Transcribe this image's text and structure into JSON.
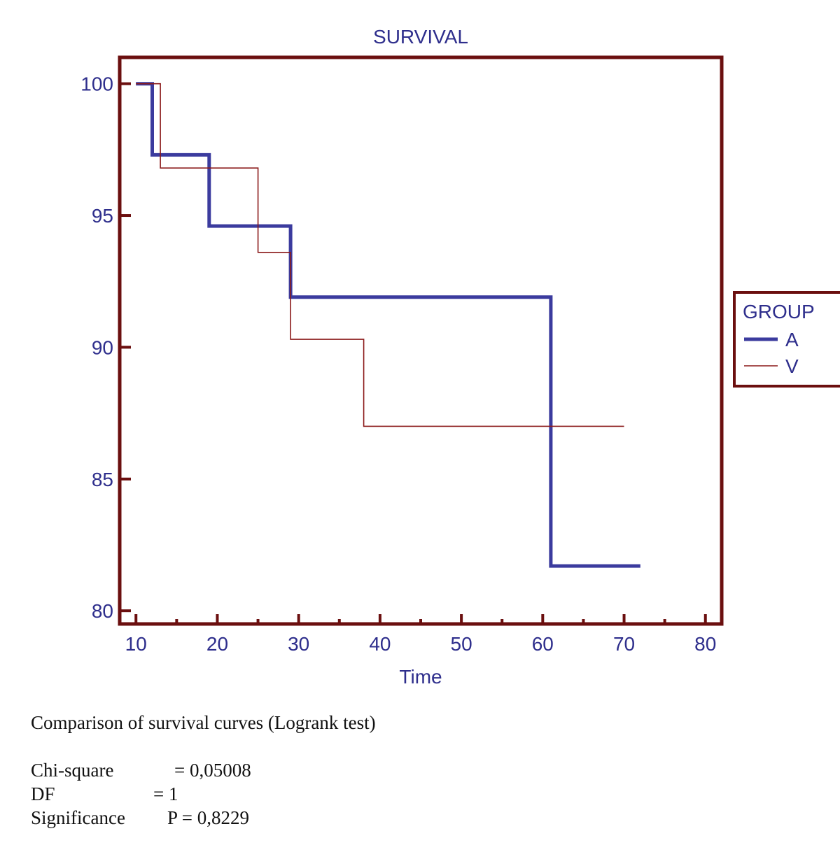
{
  "chart_data": {
    "type": "line",
    "step": true,
    "title": "SURVIVAL",
    "xlabel": "Time",
    "ylabel": "",
    "xlim": [
      8,
      82
    ],
    "ylim": [
      79.5,
      101
    ],
    "x_ticks": [
      10,
      20,
      30,
      40,
      50,
      60,
      70,
      80
    ],
    "y_ticks": [
      80,
      85,
      90,
      95,
      100
    ],
    "legend": {
      "title": "GROUP",
      "placement": "right"
    },
    "series": [
      {
        "name": "A",
        "color": "#3b3b9e",
        "x": [
          10,
          12,
          12,
          19,
          19,
          29,
          29,
          61,
          61,
          72
        ],
        "y": [
          100,
          100,
          97.3,
          97.3,
          94.6,
          94.6,
          91.9,
          91.9,
          81.7,
          81.7
        ]
      },
      {
        "name": "V",
        "color": "#8b1a1a",
        "x": [
          10,
          13,
          13,
          25,
          25,
          29,
          29,
          38,
          38,
          70
        ],
        "y": [
          100,
          100,
          96.8,
          96.8,
          93.6,
          93.6,
          90.3,
          90.3,
          87.0,
          87.0
        ]
      }
    ],
    "frame_color": "#6b0f0f",
    "grid": false
  },
  "stats": {
    "heading": "Comparison of survival curves (Logrank test)",
    "rows": [
      {
        "label": "Chi-square",
        "value": "= 0,05008"
      },
      {
        "label": "DF",
        "value": "= 1"
      },
      {
        "label": "Significance",
        "value": "P = 0,8229"
      }
    ]
  }
}
